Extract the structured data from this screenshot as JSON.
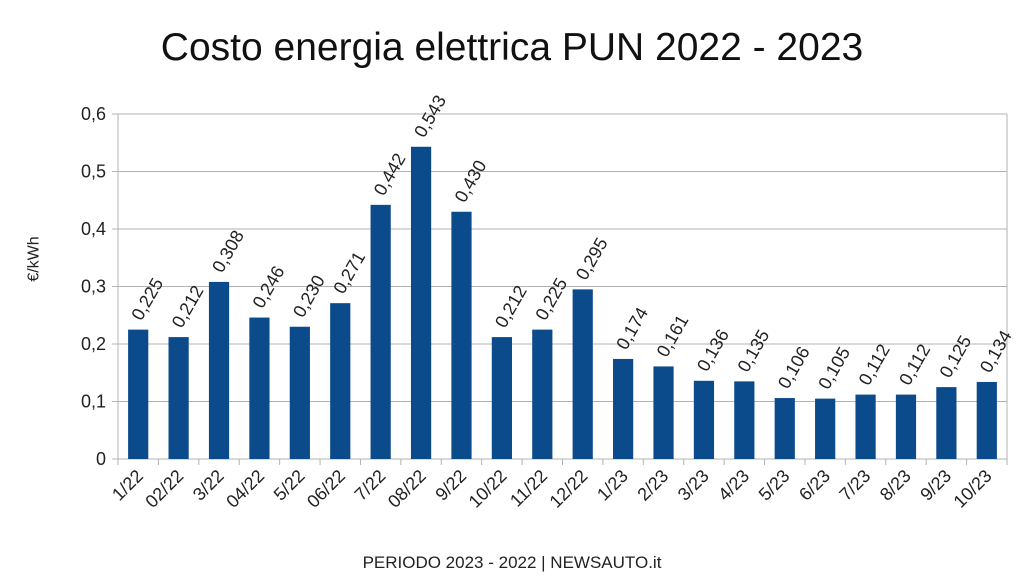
{
  "chart_data": {
    "type": "bar",
    "title": "Costo energia elettrica PUN 2022 - 2023",
    "xlabel": "PERIODO 2023 - 2022   |   NEWSAUTO.it",
    "ylabel": "€/kWh",
    "ylim": [
      0,
      0.6
    ],
    "yticks": [
      "0",
      "0,1",
      "0,2",
      "0,3",
      "0,4",
      "0,5",
      "0,6"
    ],
    "grid": true,
    "bar_color": "#0b4a8b",
    "categories": [
      "1/22",
      "02/22",
      "3/22",
      "04/22",
      "5/22",
      "06/22",
      "7/22",
      "08/22",
      "9/22",
      "10/22",
      "11/22",
      "12/22",
      "1/23",
      "2/23",
      "3/23",
      "4/23",
      "5/23",
      "6/23",
      "7/23",
      "8/23",
      "9/23",
      "10/23"
    ],
    "values": [
      0.225,
      0.212,
      0.308,
      0.246,
      0.23,
      0.271,
      0.442,
      0.543,
      0.43,
      0.212,
      0.225,
      0.295,
      0.174,
      0.161,
      0.136,
      0.135,
      0.106,
      0.105,
      0.112,
      0.112,
      0.125,
      0.134
    ],
    "value_labels": [
      "0,225",
      "0,212",
      "0,308",
      "0,246",
      "0,230",
      "0,271",
      "0,442",
      "0,543",
      "0,430",
      "0,212",
      "0,225",
      "0,295",
      "0,174",
      "0,161",
      "0,136",
      "0,135",
      "0,106",
      "0,105",
      "0,112",
      "0,112",
      "0,125",
      "0,134"
    ]
  }
}
